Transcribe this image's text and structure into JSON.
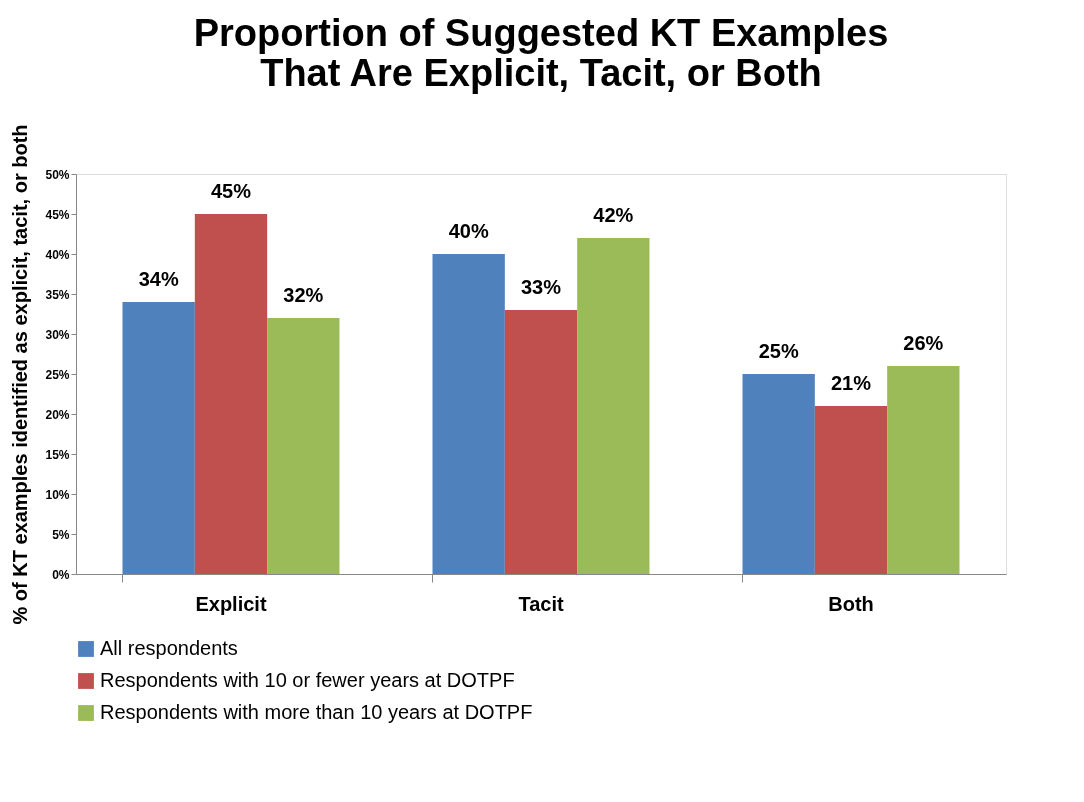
{
  "chart_data": {
    "type": "bar",
    "title": "Proportion of Suggested KT Examples That Are Explicit, Tacit, or Both",
    "ylabel": "% of KT examples identified as explicit, tacit, or both",
    "categories": [
      "Explicit",
      "Tacit",
      "Both"
    ],
    "series": [
      {
        "name": "All respondents",
        "color": "#4f81bd",
        "values": [
          34,
          40,
          25
        ],
        "value_labels": [
          "34%",
          "40%",
          "25%"
        ]
      },
      {
        "name": "Respondents with 10 or fewer years at DOTPF",
        "color": "#c0504d",
        "values": [
          45,
          33,
          21
        ],
        "value_labels": [
          "45%",
          "33%",
          "21%"
        ]
      },
      {
        "name": "Respondents with more than 10 years at DOTPF",
        "color": "#9bbb59",
        "values": [
          32,
          42,
          26
        ],
        "value_labels": [
          "32%",
          "42%",
          "26%"
        ]
      }
    ],
    "ylim": [
      0,
      50
    ],
    "yticks": [
      {
        "value": 0,
        "label": "0%"
      },
      {
        "value": 5,
        "label": "5%"
      },
      {
        "value": 10,
        "label": "10%"
      },
      {
        "value": 15,
        "label": "15%"
      },
      {
        "value": 20,
        "label": "20%"
      },
      {
        "value": 25,
        "label": "25%"
      },
      {
        "value": 30,
        "label": "30%"
      },
      {
        "value": 35,
        "label": "35%"
      },
      {
        "value": 40,
        "label": "40%"
      },
      {
        "value": 45,
        "label": "45%"
      },
      {
        "value": 50,
        "label": "50%"
      }
    ],
    "grid": false,
    "legend": "bottom"
  }
}
